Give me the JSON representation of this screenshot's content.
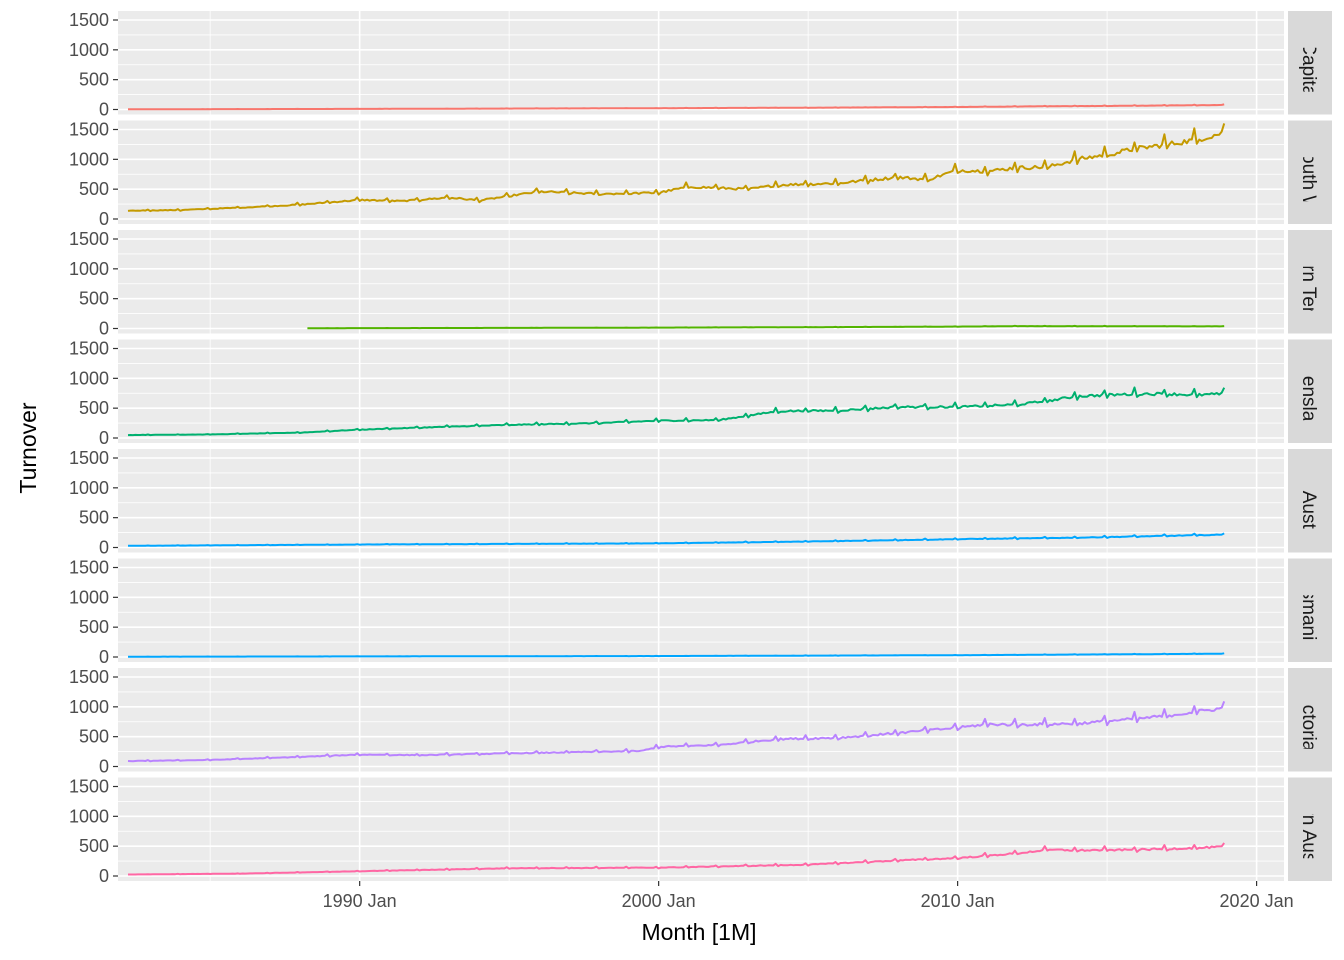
{
  "chart_data": {
    "type": "line",
    "xlabel": "Month [1M]",
    "ylabel": "Turnover",
    "x_ticks": [
      "1990 Jan",
      "2000 Jan",
      "2010 Jan",
      "2020 Jan"
    ],
    "xlim": [
      "1981-12",
      "2020-12"
    ],
    "ylim": [
      0,
      1500
    ],
    "y_ticks": [
      0,
      500,
      1000,
      1500
    ],
    "grid": true,
    "facets": "rows",
    "panels": [
      {
        "label": "Australian Capital Territory",
        "color": "#F8766D",
        "start": "1982-04",
        "end": "2018-12",
        "points": [
          [
            "1982-04",
            4
          ],
          [
            "1985-01",
            6
          ],
          [
            "1990-01",
            10
          ],
          [
            "1995-01",
            16
          ],
          [
            "2000-01",
            22
          ],
          [
            "2005-01",
            30
          ],
          [
            "2010-01",
            42
          ],
          [
            "2013-01",
            55
          ],
          [
            "2015-01",
            60
          ],
          [
            "2018-12",
            75
          ]
        ],
        "noise": 0.05
      },
      {
        "label": "New South Wales",
        "color": "#C49A00",
        "start": "1982-04",
        "end": "2018-12",
        "points": [
          [
            "1982-04",
            140
          ],
          [
            "1984-01",
            150
          ],
          [
            "1986-01",
            190
          ],
          [
            "1988-01",
            240
          ],
          [
            "1990-01",
            320
          ],
          [
            "1991-06",
            300
          ],
          [
            "1993-01",
            360
          ],
          [
            "1994-01",
            310
          ],
          [
            "1996-01",
            460
          ],
          [
            "1998-01",
            420
          ],
          [
            "2000-01",
            440
          ],
          [
            "2001-01",
            540
          ],
          [
            "2003-01",
            500
          ],
          [
            "2004-01",
            570
          ],
          [
            "2006-01",
            600
          ],
          [
            "2008-01",
            700
          ],
          [
            "2009-01",
            660
          ],
          [
            "2010-01",
            820
          ],
          [
            "2011-01",
            800
          ],
          [
            "2012-01",
            860
          ],
          [
            "2013-01",
            870
          ],
          [
            "2014-01",
            1000
          ],
          [
            "2015-01",
            1080
          ],
          [
            "2016-01",
            1180
          ],
          [
            "2017-01",
            1250
          ],
          [
            "2018-01",
            1330
          ],
          [
            "2018-12",
            1450
          ]
        ],
        "noise": 0.07
      },
      {
        "label": "Northern Territory",
        "color": "#53B400",
        "start": "1988-04",
        "end": "2018-12",
        "points": [
          [
            "1988-04",
            5
          ],
          [
            "1995-01",
            10
          ],
          [
            "2000-01",
            15
          ],
          [
            "2005-01",
            22
          ],
          [
            "2010-01",
            32
          ],
          [
            "2012-01",
            40
          ],
          [
            "2015-01",
            38
          ],
          [
            "2018-12",
            36
          ]
        ],
        "noise": 0.06
      },
      {
        "label": "Queensland",
        "color": "#00B06F",
        "start": "1982-04",
        "end": "2018-12",
        "points": [
          [
            "1982-04",
            50
          ],
          [
            "1985-01",
            60
          ],
          [
            "1988-01",
            90
          ],
          [
            "1990-01",
            140
          ],
          [
            "1993-01",
            190
          ],
          [
            "1995-01",
            220
          ],
          [
            "1998-01",
            250
          ],
          [
            "2000-01",
            290
          ],
          [
            "2002-01",
            300
          ],
          [
            "2004-01",
            450
          ],
          [
            "2006-01",
            460
          ],
          [
            "2008-01",
            520
          ],
          [
            "2010-01",
            520
          ],
          [
            "2012-01",
            560
          ],
          [
            "2013-01",
            620
          ],
          [
            "2014-01",
            700
          ],
          [
            "2016-01",
            740
          ],
          [
            "2017-01",
            740
          ],
          [
            "2018-01",
            720
          ],
          [
            "2018-12",
            740
          ]
        ],
        "noise": 0.06
      },
      {
        "label": "South Australia",
        "color": "#00A6FF",
        "start": "1982-04",
        "end": "2018-12",
        "points": [
          [
            "1982-04",
            28
          ],
          [
            "1990-01",
            50
          ],
          [
            "1995-01",
            60
          ],
          [
            "2000-01",
            70
          ],
          [
            "2005-01",
            100
          ],
          [
            "2010-01",
            140
          ],
          [
            "2014-01",
            165
          ],
          [
            "2016-01",
            185
          ],
          [
            "2018-12",
            215
          ]
        ],
        "noise": 0.05
      },
      {
        "label": "Tasmania",
        "color": "#00A6FF",
        "start": "1982-04",
        "end": "2018-12",
        "points": [
          [
            "1982-04",
            5
          ],
          [
            "1990-01",
            10
          ],
          [
            "2000-01",
            16
          ],
          [
            "2010-01",
            30
          ],
          [
            "2018-12",
            55
          ]
        ],
        "noise": 0.05
      },
      {
        "label": "Victoria",
        "color": "#B983FF",
        "start": "1982-04",
        "end": "2018-12",
        "points": [
          [
            "1982-04",
            90
          ],
          [
            "1985-01",
            110
          ],
          [
            "1988-01",
            160
          ],
          [
            "1990-01",
            200
          ],
          [
            "1992-01",
            190
          ],
          [
            "1995-01",
            220
          ],
          [
            "1999-06",
            260
          ],
          [
            "2000-01",
            330
          ],
          [
            "2002-01",
            360
          ],
          [
            "2004-01",
            460
          ],
          [
            "2006-01",
            480
          ],
          [
            "2008-01",
            560
          ],
          [
            "2010-01",
            650
          ],
          [
            "2011-01",
            710
          ],
          [
            "2012-01",
            700
          ],
          [
            "2014-01",
            720
          ],
          [
            "2016-01",
            800
          ],
          [
            "2017-01",
            850
          ],
          [
            "2018-01",
            920
          ],
          [
            "2018-12",
            980
          ]
        ],
        "noise": 0.06
      },
      {
        "label": "Western Australia",
        "color": "#FF67A4",
        "start": "1982-04",
        "end": "2018-12",
        "points": [
          [
            "1982-04",
            25
          ],
          [
            "1986-01",
            40
          ],
          [
            "1990-01",
            80
          ],
          [
            "1995-01",
            130
          ],
          [
            "2000-01",
            140
          ],
          [
            "2005-01",
            190
          ],
          [
            "2008-01",
            260
          ],
          [
            "2010-01",
            300
          ],
          [
            "2012-01",
            380
          ],
          [
            "2013-01",
            440
          ],
          [
            "2014-01",
            430
          ],
          [
            "2016-01",
            440
          ],
          [
            "2018-01",
            470
          ],
          [
            "2018-12",
            490
          ]
        ],
        "noise": 0.06
      }
    ]
  }
}
